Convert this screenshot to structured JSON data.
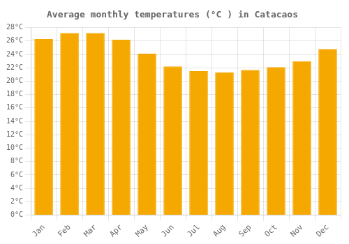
{
  "chart_data": {
    "type": "bar",
    "title": "Average monthly temperatures (°C ) in Catacaos",
    "categories": [
      "Jan",
      "Feb",
      "Mar",
      "Apr",
      "May",
      "Jun",
      "Jul",
      "Aug",
      "Sep",
      "Oct",
      "Nov",
      "Dec"
    ],
    "values": [
      26.3,
      27.2,
      27.2,
      26.2,
      24.1,
      22.2,
      21.5,
      21.3,
      21.7,
      22.1,
      23.0,
      24.8
    ],
    "color": "#F5A800",
    "ylim": [
      0,
      28
    ],
    "yticks": [
      {
        "value": 0,
        "label": "0°C"
      },
      {
        "value": 2,
        "label": "2°C"
      },
      {
        "value": 4,
        "label": "4°C"
      },
      {
        "value": 6,
        "label": "6°C"
      },
      {
        "value": 8,
        "label": "8°C"
      },
      {
        "value": 10,
        "label": "10°C"
      },
      {
        "value": 12,
        "label": "12°C"
      },
      {
        "value": 14,
        "label": "14°C"
      },
      {
        "value": 16,
        "label": "16°C"
      },
      {
        "value": 18,
        "label": "18°C"
      },
      {
        "value": 20,
        "label": "20°C"
      },
      {
        "value": 22,
        "label": "22°C"
      },
      {
        "value": 24,
        "label": "24°C"
      },
      {
        "value": 26,
        "label": "26°C"
      },
      {
        "value": 28,
        "label": "28°C"
      }
    ],
    "grid": true
  }
}
